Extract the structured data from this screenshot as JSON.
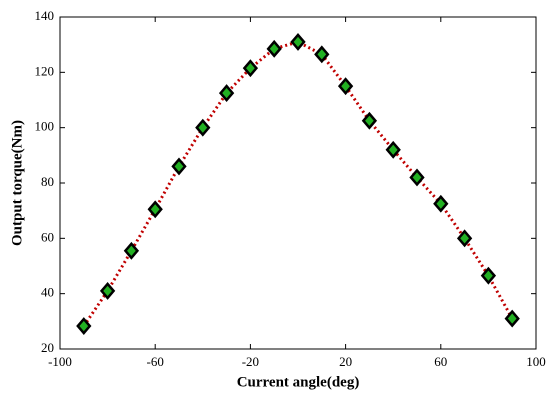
{
  "chart_data": {
    "type": "line",
    "xlabel": "Current angle(deg)",
    "ylabel": "Output torque(Nm)",
    "x": [
      -90,
      -80,
      -70,
      -60,
      -50,
      -40,
      -30,
      -20,
      -10,
      0,
      10,
      20,
      30,
      40,
      50,
      60,
      70,
      80,
      90
    ],
    "values": [
      28.3,
      41,
      55.5,
      70.5,
      86,
      100,
      112.5,
      121.5,
      128.5,
      131,
      126.5,
      115,
      102.5,
      92,
      82,
      72.5,
      60,
      46.5,
      31
    ],
    "line_color": "#c00000",
    "line_style": "dotted",
    "marker": "diamond",
    "marker_color": "#22b022",
    "marker_edge_color": "#000000",
    "xlim": [
      -100,
      100
    ],
    "xticks": [
      -100,
      -60,
      -20,
      20,
      60,
      100
    ],
    "ylim": [
      20,
      140
    ],
    "yticks": [
      20,
      40,
      60,
      80,
      100,
      120,
      140
    ],
    "grid": false
  }
}
